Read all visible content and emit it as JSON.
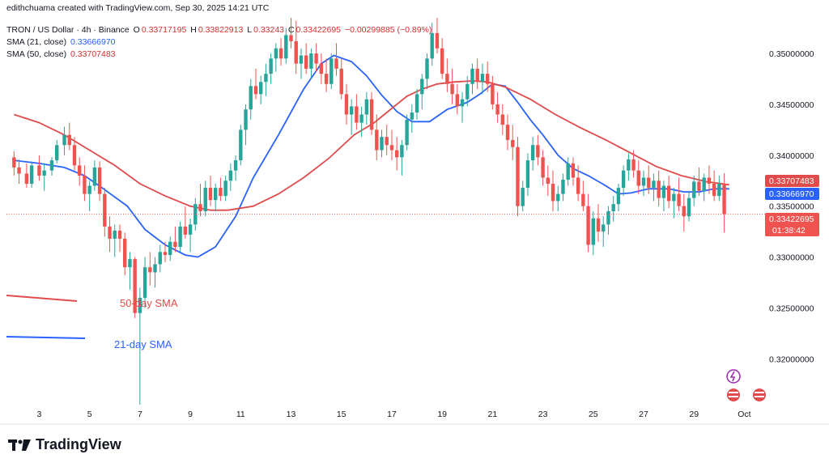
{
  "header": {
    "created_by": "edithchuama created with TradingView.com, Sep 30, 2025 14:21 UTC",
    "symbol": "TRON / US Dollar · 4h · Binance",
    "ohlc": {
      "o_label": "O",
      "o": "0.33717195",
      "h_label": "H",
      "h": "0.33822913",
      "l_label": "L",
      "l": "0.33243",
      "c_label": "C",
      "c": "0.33422695",
      "change": "−0.00299885 (−0.89%)"
    },
    "sma21_label": "SMA (21, close)",
    "sma21_value": "0.33666970",
    "sma50_label": "SMA (50, close)",
    "sma50_value": "0.33707483"
  },
  "brand": {
    "name": "TradingView"
  },
  "annotations": {
    "sma50": "50-day SMA",
    "sma21": "21-day SMA"
  },
  "price_tags": {
    "sma50": "0.33707483",
    "sma21": "0.33666970",
    "last": "0.33422695",
    "countdown": "01:38:42"
  },
  "colors": {
    "up": "#26a69a",
    "down": "#ef5350",
    "sma21": "#2962ff",
    "sma50": "#e04b4b",
    "grid_text": "#131722",
    "last_line": "#ef5350"
  },
  "chart_data": {
    "type": "candlestick",
    "title": "TRON / US Dollar · 4h · Binance",
    "x_tick_labels": [
      "3",
      "5",
      "7",
      "9",
      "11",
      "13",
      "15",
      "17",
      "19",
      "21",
      "23",
      "25",
      "27",
      "29",
      "Oct"
    ],
    "y_tick_labels": [
      "0.35000000",
      "0.34500000",
      "0.34000000",
      "0.33500000",
      "0.33000000",
      "0.32500000",
      "0.32000000"
    ],
    "y_ticks": [
      0.35,
      0.345,
      0.34,
      0.335,
      0.33,
      0.325,
      0.32
    ],
    "ylim": [
      0.3155,
      0.3535
    ],
    "x_range_days": [
      1.7,
      31.5
    ],
    "last_close": 0.33422695,
    "series": [
      {
        "name": "SMA (21, close)",
        "color": "#2962ff",
        "points": [
          [
            2.0,
            0.3395
          ],
          [
            3.0,
            0.3392
          ],
          [
            4.0,
            0.3388
          ],
          [
            4.8,
            0.338
          ],
          [
            5.5,
            0.3368
          ],
          [
            6.5,
            0.335
          ],
          [
            7.2,
            0.3327
          ],
          [
            8.0,
            0.3312
          ],
          [
            8.8,
            0.3302
          ],
          [
            9.3,
            0.33
          ],
          [
            10.0,
            0.331
          ],
          [
            10.8,
            0.334
          ],
          [
            11.5,
            0.3378
          ],
          [
            12.5,
            0.342
          ],
          [
            13.5,
            0.3465
          ],
          [
            14.2,
            0.349
          ],
          [
            14.7,
            0.3498
          ],
          [
            15.4,
            0.3492
          ],
          [
            16.0,
            0.3478
          ],
          [
            16.6,
            0.3459
          ],
          [
            17.2,
            0.3443
          ],
          [
            17.8,
            0.3433
          ],
          [
            18.5,
            0.3433
          ],
          [
            19.2,
            0.3445
          ],
          [
            20.0,
            0.3452
          ],
          [
            20.5,
            0.346
          ],
          [
            21.0,
            0.347
          ],
          [
            21.5,
            0.3468
          ],
          [
            22.0,
            0.3452
          ],
          [
            22.5,
            0.3435
          ],
          [
            23.0,
            0.342
          ],
          [
            23.6,
            0.34
          ],
          [
            24.2,
            0.3387
          ],
          [
            24.8,
            0.338
          ],
          [
            25.5,
            0.337
          ],
          [
            26.0,
            0.3362
          ],
          [
            26.5,
            0.3363
          ],
          [
            27.2,
            0.3367
          ],
          [
            28.0,
            0.3367
          ],
          [
            28.6,
            0.3364
          ],
          [
            29.2,
            0.3364
          ],
          [
            29.8,
            0.3367
          ],
          [
            30.4,
            0.3367
          ]
        ]
      },
      {
        "name": "SMA (50, close)",
        "color": "#e04b4b",
        "points": [
          [
            2.0,
            0.344
          ],
          [
            3.0,
            0.3432
          ],
          [
            4.0,
            0.342
          ],
          [
            5.0,
            0.3405
          ],
          [
            6.0,
            0.339
          ],
          [
            7.0,
            0.3372
          ],
          [
            8.0,
            0.336
          ],
          [
            9.0,
            0.335
          ],
          [
            9.8,
            0.3346
          ],
          [
            10.5,
            0.3346
          ],
          [
            11.5,
            0.335
          ],
          [
            12.5,
            0.3362
          ],
          [
            13.5,
            0.3378
          ],
          [
            14.5,
            0.3397
          ],
          [
            15.5,
            0.342
          ],
          [
            16.3,
            0.3432
          ],
          [
            17.0,
            0.3446
          ],
          [
            17.6,
            0.3458
          ],
          [
            18.2,
            0.3465
          ],
          [
            18.8,
            0.347
          ],
          [
            19.5,
            0.3472
          ],
          [
            20.2,
            0.3473
          ],
          [
            20.8,
            0.3472
          ],
          [
            21.5,
            0.3467
          ],
          [
            22.5,
            0.3455
          ],
          [
            23.5,
            0.344
          ],
          [
            24.5,
            0.3427
          ],
          [
            25.5,
            0.3415
          ],
          [
            26.5,
            0.3402
          ],
          [
            27.5,
            0.3389
          ],
          [
            28.5,
            0.338
          ],
          [
            29.5,
            0.3374
          ],
          [
            30.4,
            0.3371
          ]
        ]
      }
    ],
    "candles": [
      [
        2.0,
        0.3398,
        0.3404,
        0.338,
        0.3388
      ],
      [
        2.2,
        0.3388,
        0.3396,
        0.3372,
        0.3382
      ],
      [
        2.5,
        0.3382,
        0.3392,
        0.3368,
        0.3372
      ],
      [
        2.7,
        0.3372,
        0.3394,
        0.3368,
        0.339
      ],
      [
        3.0,
        0.339,
        0.34,
        0.3375,
        0.338
      ],
      [
        3.2,
        0.338,
        0.3392,
        0.3365,
        0.3385
      ],
      [
        3.5,
        0.3385,
        0.3398,
        0.338,
        0.3395
      ],
      [
        3.7,
        0.3395,
        0.3415,
        0.3392,
        0.341
      ],
      [
        4.0,
        0.341,
        0.3428,
        0.34,
        0.342
      ],
      [
        4.2,
        0.342,
        0.3432,
        0.3405,
        0.341
      ],
      [
        4.4,
        0.341,
        0.3418,
        0.3385,
        0.339
      ],
      [
        4.6,
        0.339,
        0.3398,
        0.337,
        0.338
      ],
      [
        4.8,
        0.338,
        0.339,
        0.3355,
        0.3362
      ],
      [
        5.0,
        0.3362,
        0.3375,
        0.3345,
        0.337
      ],
      [
        5.2,
        0.337,
        0.3395,
        0.3365,
        0.3388
      ],
      [
        5.4,
        0.3388,
        0.3394,
        0.3355,
        0.3362
      ],
      [
        5.6,
        0.3362,
        0.3368,
        0.332,
        0.333
      ],
      [
        5.8,
        0.333,
        0.334,
        0.3305,
        0.3318
      ],
      [
        6.0,
        0.3318,
        0.3332,
        0.33,
        0.3326
      ],
      [
        6.2,
        0.3326,
        0.3332,
        0.3305,
        0.3318
      ],
      [
        6.4,
        0.3318,
        0.3324,
        0.3282,
        0.329
      ],
      [
        6.6,
        0.329,
        0.3305,
        0.3268,
        0.3298
      ],
      [
        6.8,
        0.3298,
        0.33,
        0.324,
        0.3245
      ],
      [
        7.0,
        0.3245,
        0.327,
        0.3155,
        0.326
      ],
      [
        7.2,
        0.326,
        0.33,
        0.325,
        0.329
      ],
      [
        7.4,
        0.329,
        0.3305,
        0.3272,
        0.3285
      ],
      [
        7.6,
        0.3285,
        0.33,
        0.327,
        0.3293
      ],
      [
        7.8,
        0.3293,
        0.3312,
        0.3285,
        0.3305
      ],
      [
        8.0,
        0.3305,
        0.3315,
        0.3295,
        0.3302
      ],
      [
        8.2,
        0.3302,
        0.332,
        0.3296,
        0.3315
      ],
      [
        8.4,
        0.3315,
        0.333,
        0.3305,
        0.331
      ],
      [
        8.6,
        0.331,
        0.3335,
        0.3305,
        0.333
      ],
      [
        8.8,
        0.333,
        0.335,
        0.3318,
        0.3322
      ],
      [
        9.0,
        0.3322,
        0.3338,
        0.3305,
        0.3332
      ],
      [
        9.2,
        0.3332,
        0.3358,
        0.3326,
        0.3352
      ],
      [
        9.4,
        0.3352,
        0.3372,
        0.334,
        0.3345
      ],
      [
        9.6,
        0.3345,
        0.3375,
        0.334,
        0.3368
      ],
      [
        9.8,
        0.3368,
        0.338,
        0.335,
        0.3356
      ],
      [
        10.0,
        0.3356,
        0.3372,
        0.3345,
        0.3368
      ],
      [
        10.2,
        0.3368,
        0.3378,
        0.3355,
        0.336
      ],
      [
        10.4,
        0.336,
        0.338,
        0.3355,
        0.3375
      ],
      [
        10.6,
        0.3375,
        0.3392,
        0.3365,
        0.3385
      ],
      [
        10.8,
        0.3385,
        0.34,
        0.3375,
        0.3395
      ],
      [
        11.0,
        0.3395,
        0.343,
        0.339,
        0.3425
      ],
      [
        11.2,
        0.3425,
        0.345,
        0.341,
        0.3445
      ],
      [
        11.4,
        0.3445,
        0.3475,
        0.3435,
        0.3468
      ],
      [
        11.6,
        0.3468,
        0.3485,
        0.3455,
        0.346
      ],
      [
        11.8,
        0.346,
        0.3478,
        0.345,
        0.3472
      ],
      [
        12.0,
        0.3472,
        0.349,
        0.3458,
        0.348
      ],
      [
        12.2,
        0.348,
        0.35,
        0.347,
        0.3495
      ],
      [
        12.4,
        0.3495,
        0.351,
        0.3482,
        0.3505
      ],
      [
        12.6,
        0.3505,
        0.3515,
        0.3488,
        0.3495
      ],
      [
        12.8,
        0.3495,
        0.3525,
        0.349,
        0.3518
      ],
      [
        13.0,
        0.3518,
        0.3535,
        0.3505,
        0.3512
      ],
      [
        13.2,
        0.3512,
        0.3532,
        0.348,
        0.349
      ],
      [
        13.4,
        0.349,
        0.3505,
        0.3475,
        0.3498
      ],
      [
        13.6,
        0.3498,
        0.351,
        0.348,
        0.3485
      ],
      [
        13.8,
        0.3485,
        0.3505,
        0.3475,
        0.35
      ],
      [
        14.0,
        0.35,
        0.351,
        0.3482,
        0.349
      ],
      [
        14.2,
        0.349,
        0.35,
        0.347,
        0.348
      ],
      [
        14.4,
        0.348,
        0.3495,
        0.3462,
        0.347
      ],
      [
        14.6,
        0.347,
        0.35,
        0.3465,
        0.3495
      ],
      [
        14.8,
        0.3495,
        0.351,
        0.3478,
        0.3485
      ],
      [
        15.0,
        0.3485,
        0.3495,
        0.3455,
        0.346
      ],
      [
        15.2,
        0.346,
        0.347,
        0.343,
        0.344
      ],
      [
        15.4,
        0.344,
        0.3455,
        0.342,
        0.3448
      ],
      [
        15.6,
        0.3448,
        0.346,
        0.3425,
        0.3432
      ],
      [
        15.8,
        0.3432,
        0.3448,
        0.3418,
        0.344
      ],
      [
        16.0,
        0.344,
        0.3462,
        0.343,
        0.3455
      ],
      [
        16.2,
        0.3455,
        0.3462,
        0.342,
        0.3425
      ],
      [
        16.4,
        0.3425,
        0.344,
        0.3395,
        0.3405
      ],
      [
        16.6,
        0.3405,
        0.3425,
        0.3398,
        0.3418
      ],
      [
        16.8,
        0.3418,
        0.343,
        0.34,
        0.341
      ],
      [
        17.0,
        0.341,
        0.3425,
        0.3395,
        0.3405
      ],
      [
        17.2,
        0.3405,
        0.3418,
        0.3385,
        0.3398
      ],
      [
        17.4,
        0.3398,
        0.3415,
        0.338,
        0.341
      ],
      [
        17.6,
        0.341,
        0.344,
        0.3405,
        0.3435
      ],
      [
        17.8,
        0.3435,
        0.345,
        0.3422,
        0.3442
      ],
      [
        18.0,
        0.3442,
        0.3465,
        0.3435,
        0.346
      ],
      [
        18.2,
        0.346,
        0.348,
        0.3445,
        0.3475
      ],
      [
        18.4,
        0.3475,
        0.35,
        0.3465,
        0.3495
      ],
      [
        18.6,
        0.3495,
        0.353,
        0.3488,
        0.352
      ],
      [
        18.8,
        0.352,
        0.3535,
        0.35,
        0.3505
      ],
      [
        19.0,
        0.3505,
        0.3515,
        0.3475,
        0.348
      ],
      [
        19.2,
        0.348,
        0.3495,
        0.3462,
        0.347
      ],
      [
        19.4,
        0.347,
        0.3485,
        0.345,
        0.346
      ],
      [
        19.6,
        0.346,
        0.347,
        0.344,
        0.3448
      ],
      [
        19.8,
        0.3448,
        0.3462,
        0.3432,
        0.3455
      ],
      [
        20.0,
        0.3455,
        0.3478,
        0.3448,
        0.347
      ],
      [
        20.2,
        0.347,
        0.349,
        0.346,
        0.3485
      ],
      [
        20.4,
        0.3485,
        0.3495,
        0.3465,
        0.3472
      ],
      [
        20.6,
        0.3472,
        0.349,
        0.346,
        0.348
      ],
      [
        20.8,
        0.348,
        0.3492,
        0.3462,
        0.347
      ],
      [
        21.0,
        0.347,
        0.3478,
        0.3445,
        0.345
      ],
      [
        21.2,
        0.345,
        0.3462,
        0.3432,
        0.344
      ],
      [
        21.4,
        0.344,
        0.345,
        0.342,
        0.343
      ],
      [
        21.6,
        0.343,
        0.344,
        0.3405,
        0.3415
      ],
      [
        21.8,
        0.3415,
        0.343,
        0.3395,
        0.3408
      ],
      [
        22.0,
        0.3408,
        0.3418,
        0.334,
        0.335
      ],
      [
        22.2,
        0.335,
        0.3375,
        0.3345,
        0.3368
      ],
      [
        22.4,
        0.3368,
        0.3402,
        0.336,
        0.3395
      ],
      [
        22.6,
        0.3395,
        0.3418,
        0.3385,
        0.341
      ],
      [
        22.8,
        0.341,
        0.342,
        0.339,
        0.3398
      ],
      [
        23.0,
        0.3398,
        0.3405,
        0.337,
        0.3378
      ],
      [
        23.2,
        0.3378,
        0.339,
        0.336,
        0.3372
      ],
      [
        23.4,
        0.3372,
        0.3385,
        0.3345,
        0.3355
      ],
      [
        23.6,
        0.3355,
        0.337,
        0.3345,
        0.3362
      ],
      [
        23.8,
        0.3362,
        0.3382,
        0.3355,
        0.3376
      ],
      [
        24.0,
        0.3376,
        0.3398,
        0.337,
        0.3392
      ],
      [
        24.2,
        0.3392,
        0.3398,
        0.337,
        0.3378
      ],
      [
        24.4,
        0.3378,
        0.339,
        0.3355,
        0.3362
      ],
      [
        24.6,
        0.3362,
        0.3375,
        0.3345,
        0.335
      ],
      [
        24.8,
        0.335,
        0.3362,
        0.3305,
        0.3312
      ],
      [
        25.0,
        0.3312,
        0.3345,
        0.3302,
        0.3338
      ],
      [
        25.2,
        0.3338,
        0.3352,
        0.3315,
        0.3325
      ],
      [
        25.4,
        0.3325,
        0.334,
        0.331,
        0.3332
      ],
      [
        25.6,
        0.3332,
        0.335,
        0.3322,
        0.3345
      ],
      [
        25.8,
        0.3345,
        0.336,
        0.3335,
        0.3352
      ],
      [
        26.0,
        0.3352,
        0.3372,
        0.3345,
        0.3368
      ],
      [
        26.2,
        0.3368,
        0.339,
        0.336,
        0.3385
      ],
      [
        26.4,
        0.3385,
        0.3402,
        0.3375,
        0.3396
      ],
      [
        26.6,
        0.3396,
        0.3405,
        0.3378,
        0.3385
      ],
      [
        26.8,
        0.3385,
        0.3395,
        0.3362,
        0.337
      ],
      [
        27.0,
        0.337,
        0.3385,
        0.336,
        0.3378
      ],
      [
        27.2,
        0.3378,
        0.339,
        0.3362,
        0.3368
      ],
      [
        27.4,
        0.3368,
        0.3382,
        0.3355,
        0.3375
      ],
      [
        27.6,
        0.3375,
        0.3385,
        0.335,
        0.3358
      ],
      [
        27.8,
        0.3358,
        0.3375,
        0.3345,
        0.337
      ],
      [
        28.0,
        0.337,
        0.338,
        0.3348,
        0.3355
      ],
      [
        28.2,
        0.3355,
        0.3368,
        0.3338,
        0.3362
      ],
      [
        28.4,
        0.3362,
        0.3378,
        0.3345,
        0.335
      ],
      [
        28.6,
        0.335,
        0.3362,
        0.3325,
        0.334
      ],
      [
        28.8,
        0.334,
        0.3365,
        0.3335,
        0.3358
      ],
      [
        29.0,
        0.3358,
        0.338,
        0.335,
        0.3374
      ],
      [
        29.2,
        0.3374,
        0.3388,
        0.336,
        0.3365
      ],
      [
        29.4,
        0.3365,
        0.3382,
        0.3355,
        0.3378
      ],
      [
        29.6,
        0.3378,
        0.339,
        0.3362,
        0.3372
      ],
      [
        29.8,
        0.3372,
        0.3385,
        0.3355,
        0.336
      ],
      [
        30.0,
        0.336,
        0.338,
        0.3355,
        0.3372
      ],
      [
        30.2,
        0.33717195,
        0.33822913,
        0.33243,
        0.33422695
      ]
    ]
  }
}
